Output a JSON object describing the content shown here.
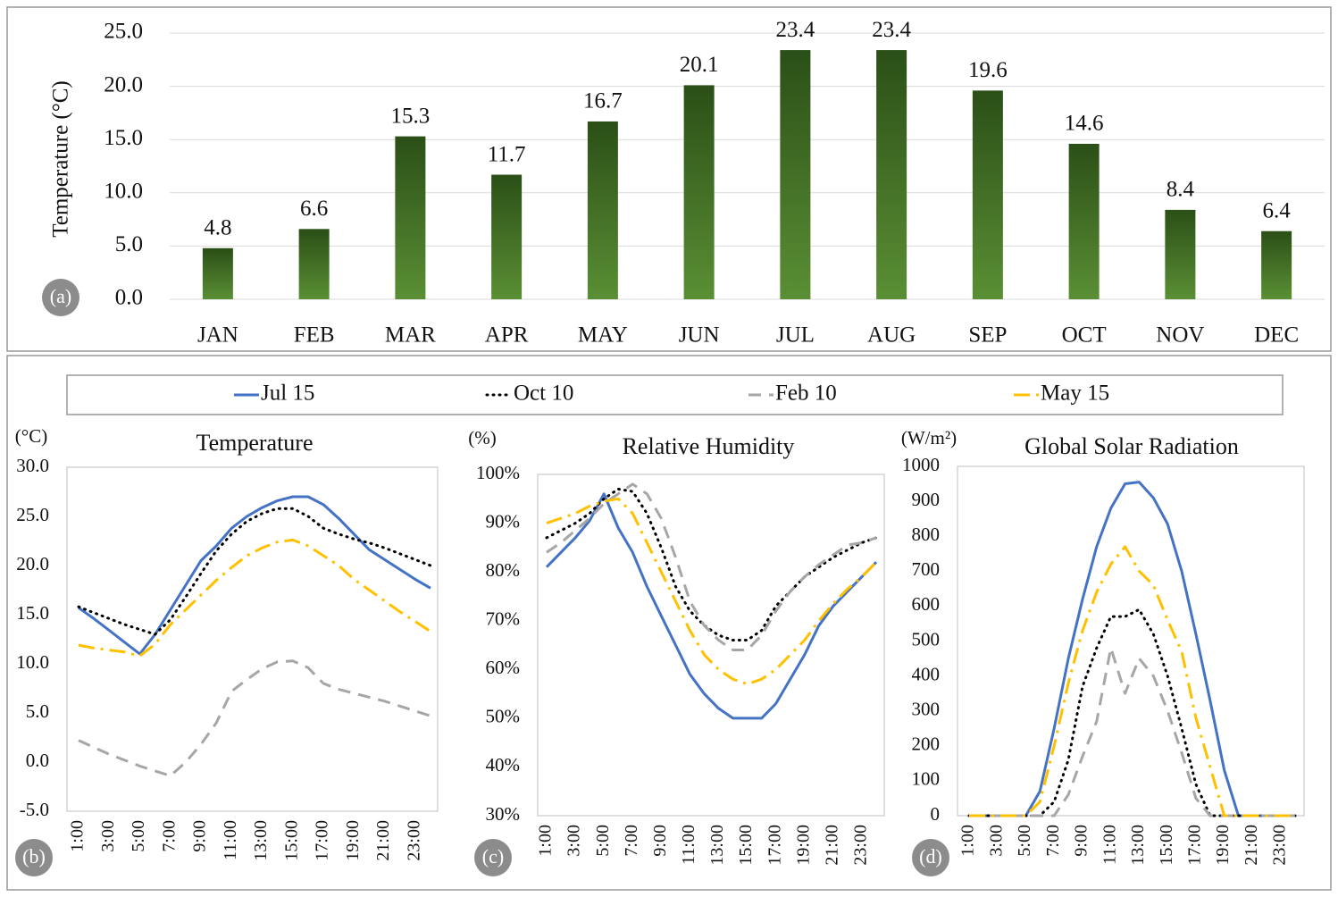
{
  "chart_data": [
    {
      "type": "bar",
      "panel_label": "(a)",
      "y_label": "Temperature (°C)",
      "categories": [
        "JAN",
        "FEB",
        "MAR",
        "APR",
        "MAY",
        "JUN",
        "JUL",
        "AUG",
        "SEP",
        "OCT",
        "NOV",
        "DEC"
      ],
      "values": [
        4.8,
        6.6,
        15.3,
        11.7,
        16.7,
        20.1,
        23.4,
        23.4,
        19.6,
        14.6,
        8.4,
        6.4
      ],
      "gradient": [
        "#2b4f17",
        "#5a8f34"
      ],
      "ylim": [
        0,
        25
      ],
      "yticks": [
        {
          "value": 0,
          "label": "0.0"
        },
        {
          "value": 5,
          "label": "5.0"
        },
        {
          "value": 10,
          "label": "10.0"
        },
        {
          "value": 15,
          "label": "15.0"
        },
        {
          "value": 20,
          "label": "20.0"
        },
        {
          "value": 25,
          "label": "25.0"
        }
      ],
      "grid": true
    },
    {
      "type": "line",
      "panel_label": "(b)",
      "title": "Temperature",
      "y_label": "(°C)",
      "categories": [
        "1:00",
        null,
        "3:00",
        null,
        "5:00",
        null,
        "7:00",
        null,
        "9:00",
        null,
        "11:00",
        null,
        "13:00",
        null,
        "15:00",
        null,
        "17:00",
        null,
        "19:00",
        null,
        "21:00",
        null,
        "23:00",
        null
      ],
      "series": [
        {
          "name": "Jul 15",
          "color": "#4472c4",
          "style": "solid",
          "values": [
            15.7,
            14.6,
            13.4,
            12.2,
            11.0,
            13.0,
            15.5,
            18.0,
            20.5,
            22.0,
            23.8,
            25.0,
            25.9,
            26.6,
            27.0,
            27.0,
            26.2,
            24.8,
            23.2,
            21.6,
            20.6,
            19.6,
            18.6,
            17.7
          ]
        },
        {
          "name": "Oct 10",
          "color": "#000000",
          "style": "dotted",
          "values": [
            15.8,
            15.2,
            14.6,
            14.0,
            13.5,
            13.0,
            14.5,
            16.8,
            19.2,
            21.5,
            23.2,
            24.5,
            25.3,
            25.8,
            25.8,
            25.0,
            23.8,
            23.2,
            22.7,
            22.3,
            21.8,
            21.2,
            20.6,
            20.0
          ]
        },
        {
          "name": "Feb 10",
          "color": "#a6a6a6",
          "style": "dashed",
          "values": [
            2.2,
            1.5,
            0.8,
            0.2,
            -0.4,
            -0.9,
            -1.4,
            0.0,
            1.8,
            4.0,
            7.2,
            8.4,
            9.5,
            10.2,
            10.3,
            9.6,
            8.0,
            7.4,
            7.0,
            6.6,
            6.2,
            5.7,
            5.2,
            4.7
          ]
        },
        {
          "name": "May 15",
          "color": "#ffc000",
          "style": "dashdot",
          "values": [
            11.9,
            11.6,
            11.4,
            11.2,
            10.8,
            12.0,
            14.0,
            15.5,
            17.0,
            18.5,
            19.8,
            21.0,
            21.8,
            22.4,
            22.6,
            22.0,
            21.0,
            20.0,
            18.6,
            17.5,
            16.4,
            15.3,
            14.3,
            13.3
          ]
        }
      ],
      "ylim": [
        -5,
        30
      ],
      "yticks": [
        {
          "value": -5,
          "label": "-5.0"
        },
        {
          "value": 0,
          "label": "0.0"
        },
        {
          "value": 5,
          "label": "5.0"
        },
        {
          "value": 10,
          "label": "10.0"
        },
        {
          "value": 15,
          "label": "15.0"
        },
        {
          "value": 20,
          "label": "20.0"
        },
        {
          "value": 25,
          "label": "25.0"
        },
        {
          "value": 30,
          "label": "30.0"
        }
      ],
      "grid": false
    },
    {
      "type": "line",
      "panel_label": "(c)",
      "title": "Relative Humidity",
      "y_label": "(%)",
      "categories": [
        "1:00",
        null,
        "3:00",
        null,
        "5:00",
        null,
        "7:00",
        null,
        "9:00",
        null,
        "11:00",
        null,
        "13:00",
        null,
        "15:00",
        null,
        "17:00",
        null,
        "19:00",
        null,
        "21:00",
        null,
        "23:00",
        null
      ],
      "series": [
        {
          "color": "#4472c4",
          "style": "solid",
          "values": [
            81,
            84,
            87,
            90.5,
            96,
            89,
            84,
            77,
            71,
            65,
            59,
            55,
            52,
            50,
            50,
            50,
            53,
            58,
            63,
            69,
            73,
            76,
            79,
            82
          ]
        },
        {
          "color": "#000000",
          "style": "dotted",
          "values": [
            87,
            88.5,
            90,
            92,
            95,
            97,
            96.5,
            92,
            85,
            77,
            72,
            69,
            67,
            66,
            66,
            68,
            73,
            76,
            79,
            81,
            83,
            84.5,
            86,
            87
          ]
        },
        {
          "color": "#a6a6a6",
          "style": "dashed",
          "values": [
            84,
            86,
            88.5,
            91,
            94,
            96,
            98,
            96,
            91,
            83,
            74,
            69,
            66,
            64,
            64,
            67,
            72,
            76,
            79,
            81.5,
            83.5,
            85.5,
            86,
            87
          ]
        },
        {
          "color": "#ffc000",
          "style": "dashdot",
          "values": [
            90,
            91,
            92,
            93.5,
            94.5,
            95,
            92,
            86,
            80,
            74,
            68,
            63,
            60,
            58,
            57,
            58,
            60,
            63,
            66,
            70,
            73.5,
            76.5,
            79,
            82
          ]
        }
      ],
      "ylim": [
        30,
        100
      ],
      "yticks": [
        {
          "value": 30,
          "label": "30%"
        },
        {
          "value": 40,
          "label": "40%"
        },
        {
          "value": 50,
          "label": "50%"
        },
        {
          "value": 60,
          "label": "60%"
        },
        {
          "value": 70,
          "label": "70%"
        },
        {
          "value": 80,
          "label": "80%"
        },
        {
          "value": 90,
          "label": "90%"
        },
        {
          "value": 100,
          "label": "100%"
        }
      ],
      "grid": false
    },
    {
      "type": "line",
      "panel_label": "(d)",
      "title": "Global Solar Radiation",
      "y_label": "(W/m²)",
      "categories": [
        "1:00",
        null,
        "3:00",
        null,
        "5:00",
        null,
        "7:00",
        null,
        "9:00",
        null,
        "11:00",
        null,
        "13:00",
        null,
        "15:00",
        null,
        "17:00",
        null,
        "19:00",
        null,
        "21:00",
        null,
        "23:00",
        null
      ],
      "series": [
        {
          "color": "#4472c4",
          "style": "solid",
          "values": [
            0,
            0,
            0,
            0,
            0,
            70,
            250,
            450,
            620,
            770,
            880,
            950,
            955,
            910,
            835,
            700,
            520,
            330,
            130,
            0,
            0,
            0,
            0,
            0
          ]
        },
        {
          "color": "#000000",
          "style": "dotted",
          "values": [
            0,
            0,
            0,
            0,
            0,
            0,
            40,
            160,
            370,
            480,
            570,
            570,
            590,
            520,
            400,
            250,
            90,
            0,
            0,
            0,
            0,
            0,
            0,
            0
          ]
        },
        {
          "color": "#a6a6a6",
          "style": "dashed",
          "values": [
            0,
            0,
            0,
            0,
            0,
            0,
            0,
            60,
            170,
            270,
            480,
            350,
            450,
            400,
            300,
            180,
            50,
            0,
            0,
            0,
            0,
            0,
            0,
            0
          ]
        },
        {
          "color": "#ffc000",
          "style": "dashdot",
          "values": [
            0,
            0,
            0,
            0,
            0,
            40,
            200,
            380,
            530,
            640,
            720,
            770,
            700,
            660,
            560,
            470,
            280,
            140,
            0,
            0,
            0,
            0,
            0,
            0
          ]
        }
      ],
      "ylim": [
        0,
        1000
      ],
      "yticks": [
        0,
        100,
        200,
        300,
        400,
        500,
        600,
        700,
        800,
        900,
        1000
      ],
      "grid": false
    }
  ]
}
